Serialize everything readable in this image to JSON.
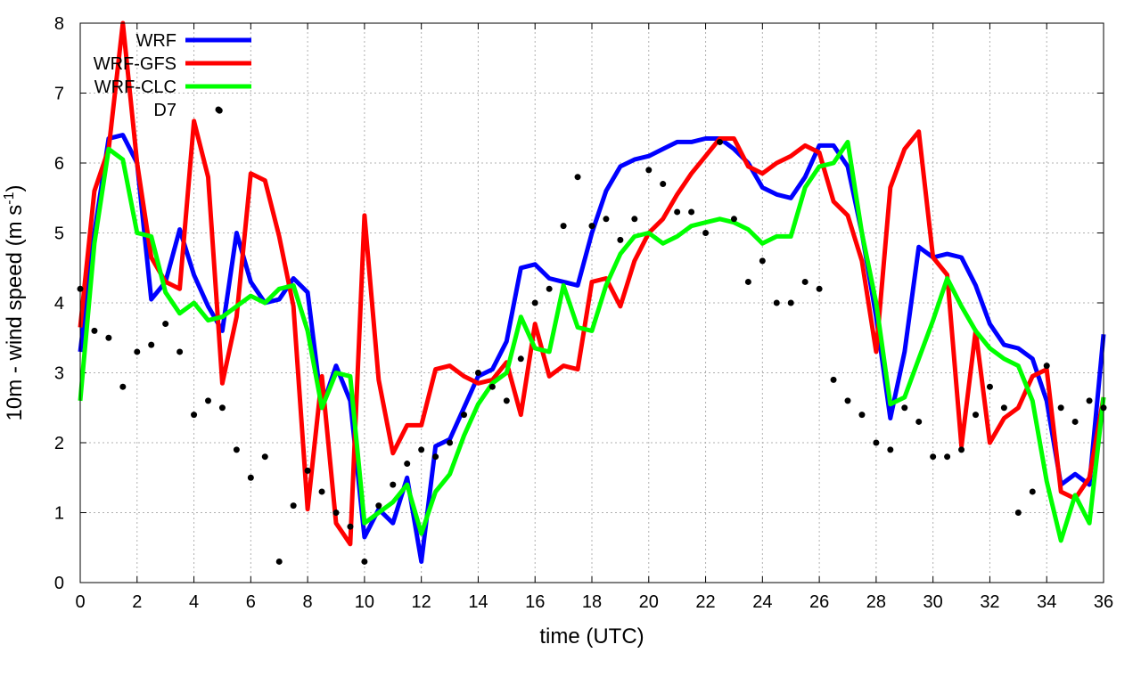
{
  "chart_data": {
    "type": "line",
    "xlabel": "time (UTC)",
    "ylabel": "10m - wind speed  (m s-1)",
    "xlim": [
      0,
      36
    ],
    "ylim": [
      0,
      8
    ],
    "xticks": [
      "0",
      "2",
      "4",
      "6",
      "8",
      "10",
      "12",
      "14",
      "16",
      "18",
      "20",
      "22",
      "24",
      "26",
      "28",
      "30",
      "32",
      "34",
      "36"
    ],
    "yticks": [
      "0",
      "1",
      "2",
      "3",
      "4",
      "5",
      "6",
      "7",
      "8"
    ],
    "grid": true,
    "legend_position": "top-left",
    "series": [
      {
        "name": "WRF",
        "color": "#0000ff",
        "style": "line",
        "x": [
          0,
          0.5,
          1,
          1.5,
          2,
          2.5,
          3,
          3.5,
          4,
          4.5,
          5,
          5.5,
          6,
          6.5,
          7,
          7.5,
          8,
          8.5,
          9,
          9.5,
          10,
          10.5,
          11,
          11.5,
          12,
          12.5,
          13,
          13.5,
          14,
          14.5,
          15,
          15.5,
          16,
          16.5,
          17,
          17.5,
          18,
          18.5,
          19,
          19.5,
          20,
          20.5,
          21,
          21.5,
          22,
          22.5,
          23,
          23.5,
          24,
          24.5,
          25,
          25.5,
          26,
          26.5,
          27,
          27.5,
          28,
          28.5,
          29,
          29.5,
          30,
          30.5,
          31,
          31.5,
          32,
          32.5,
          33,
          33.5,
          34,
          34.5,
          35,
          35.5,
          36
        ],
        "y": [
          3.3,
          5.0,
          6.35,
          6.4,
          6.0,
          4.05,
          4.3,
          5.05,
          4.4,
          3.95,
          3.6,
          5.0,
          4.3,
          4.0,
          4.05,
          4.35,
          4.15,
          2.5,
          3.1,
          2.6,
          0.65,
          1.05,
          0.85,
          1.5,
          0.3,
          1.95,
          2.05,
          2.5,
          2.95,
          3.05,
          3.45,
          4.5,
          4.55,
          4.35,
          4.3,
          4.25,
          5.0,
          5.6,
          5.95,
          6.05,
          6.1,
          6.2,
          6.3,
          6.3,
          6.35,
          6.35,
          6.2,
          6.0,
          5.65,
          5.55,
          5.5,
          5.8,
          6.25,
          6.25,
          5.95,
          5.0,
          3.8,
          2.35,
          3.3,
          4.8,
          4.65,
          4.7,
          4.65,
          4.25,
          3.7,
          3.4,
          3.35,
          3.2,
          2.6,
          1.4,
          1.55,
          1.4,
          3.55
        ]
      },
      {
        "name": "WRF-GFS",
        "color": "#ff0000",
        "style": "line",
        "x": [
          0,
          0.5,
          1,
          1.5,
          2,
          2.5,
          3,
          3.5,
          4,
          4.5,
          5,
          5.5,
          6,
          6.5,
          7,
          7.5,
          8,
          8.5,
          9,
          9.5,
          10,
          10.5,
          11,
          11.5,
          12,
          12.5,
          13,
          13.5,
          14,
          14.5,
          15,
          15.5,
          16,
          16.5,
          17,
          17.5,
          18,
          18.5,
          19,
          19.5,
          20,
          20.5,
          21,
          21.5,
          22,
          22.5,
          23,
          23.5,
          24,
          24.5,
          25,
          25.5,
          26,
          26.5,
          27,
          27.5,
          28,
          28.5,
          29,
          29.5,
          30,
          30.5,
          31,
          31.5,
          32,
          32.5,
          33,
          33.5,
          34,
          34.5,
          35,
          35.5,
          36
        ],
        "y": [
          3.65,
          5.6,
          6.2,
          8.0,
          6.0,
          4.65,
          4.3,
          4.2,
          6.6,
          5.8,
          2.85,
          3.8,
          5.85,
          5.75,
          4.95,
          3.95,
          1.05,
          2.95,
          0.85,
          0.55,
          5.25,
          2.9,
          1.85,
          2.25,
          2.25,
          3.05,
          3.1,
          2.95,
          2.85,
          2.9,
          3.15,
          2.4,
          3.7,
          2.95,
          3.1,
          3.05,
          4.3,
          4.35,
          3.95,
          4.6,
          5.0,
          5.2,
          5.55,
          5.85,
          6.1,
          6.35,
          6.35,
          5.95,
          5.85,
          6.0,
          6.1,
          6.25,
          6.15,
          5.45,
          5.25,
          4.6,
          3.3,
          5.65,
          6.2,
          6.45,
          4.65,
          4.4,
          1.95,
          3.6,
          2.0,
          2.35,
          2.5,
          2.95,
          3.05,
          1.3,
          1.2,
          1.5,
          2.65
        ]
      },
      {
        "name": "WRF-CLC",
        "color": "#00ff00",
        "style": "line",
        "x": [
          0,
          0.5,
          1,
          1.5,
          2,
          2.5,
          3,
          3.5,
          4,
          4.5,
          5,
          5.5,
          6,
          6.5,
          7,
          7.5,
          8,
          8.5,
          9,
          9.5,
          10,
          10.5,
          11,
          11.5,
          12,
          12.5,
          13,
          13.5,
          14,
          14.5,
          15,
          15.5,
          16,
          16.5,
          17,
          17.5,
          18,
          18.5,
          19,
          19.5,
          20,
          20.5,
          21,
          21.5,
          22,
          22.5,
          23,
          23.5,
          24,
          24.5,
          25,
          25.5,
          26,
          26.5,
          27,
          27.5,
          28,
          28.5,
          29,
          29.5,
          30,
          30.5,
          31,
          31.5,
          32,
          32.5,
          33,
          33.5,
          34,
          34.5,
          35,
          35.5,
          36
        ],
        "y": [
          2.6,
          4.85,
          6.2,
          6.05,
          5.0,
          4.95,
          4.15,
          3.85,
          4.0,
          3.75,
          3.8,
          3.95,
          4.1,
          4.0,
          4.2,
          4.25,
          3.6,
          2.5,
          3.0,
          2.95,
          0.85,
          1.0,
          1.15,
          1.4,
          0.7,
          1.3,
          1.55,
          2.1,
          2.55,
          2.85,
          3.0,
          3.8,
          3.35,
          3.3,
          4.25,
          3.65,
          3.6,
          4.25,
          4.7,
          4.95,
          5.0,
          4.85,
          4.95,
          5.1,
          5.15,
          5.2,
          5.15,
          5.05,
          4.85,
          4.95,
          4.95,
          5.65,
          5.95,
          6.0,
          6.3,
          5.0,
          4.0,
          2.55,
          2.65,
          3.2,
          3.75,
          4.35,
          3.95,
          3.6,
          3.35,
          3.2,
          3.1,
          2.6,
          1.45,
          0.6,
          1.25,
          0.85,
          2.65
        ]
      },
      {
        "name": "D7",
        "color": "#000000",
        "style": "points",
        "x": [
          0,
          0.5,
          1,
          1.5,
          2,
          2.5,
          3,
          3.5,
          4,
          4.5,
          5,
          5.5,
          6,
          6.5,
          7,
          7.5,
          8,
          8.5,
          9,
          9.5,
          10,
          10.5,
          11,
          11.5,
          12,
          12.5,
          13,
          13.5,
          14,
          14.5,
          15,
          15.5,
          16,
          16.5,
          17,
          17.5,
          18,
          18.5,
          19,
          19.5,
          20,
          20.5,
          21,
          21.5,
          22,
          22.5,
          23,
          23.5,
          24,
          24.5,
          25,
          25.5,
          26,
          26.5,
          27,
          27.5,
          28,
          28.5,
          29,
          29.5,
          30,
          30.5,
          31,
          31.5,
          32,
          32.5,
          33,
          33.5,
          34,
          34.5,
          35,
          35.5,
          36
        ],
        "y": [
          4.2,
          3.6,
          3.5,
          2.8,
          3.3,
          3.4,
          3.7,
          3.3,
          2.4,
          2.6,
          2.5,
          1.9,
          1.5,
          1.8,
          0.3,
          1.1,
          1.6,
          1.3,
          1.0,
          0.8,
          0.3,
          1.1,
          1.4,
          1.7,
          1.9,
          1.8,
          2.0,
          2.4,
          3.0,
          2.8,
          2.6,
          3.2,
          4.0,
          4.2,
          5.1,
          5.8,
          5.1,
          5.2,
          4.9,
          5.2,
          5.9,
          5.7,
          5.3,
          5.3,
          5.0,
          6.3,
          5.2,
          4.3,
          4.6,
          4.0,
          4.0,
          4.3,
          4.2,
          2.9,
          2.6,
          2.4,
          2.0,
          1.9,
          2.5,
          2.3,
          1.8,
          1.8,
          1.9,
          2.4,
          2.8,
          2.5,
          1.0,
          1.3,
          3.1,
          2.5,
          2.3,
          2.6,
          2.5
        ]
      }
    ],
    "extra_points": [
      {
        "series": "D7",
        "x": 4.9,
        "y": 6.75
      }
    ]
  }
}
